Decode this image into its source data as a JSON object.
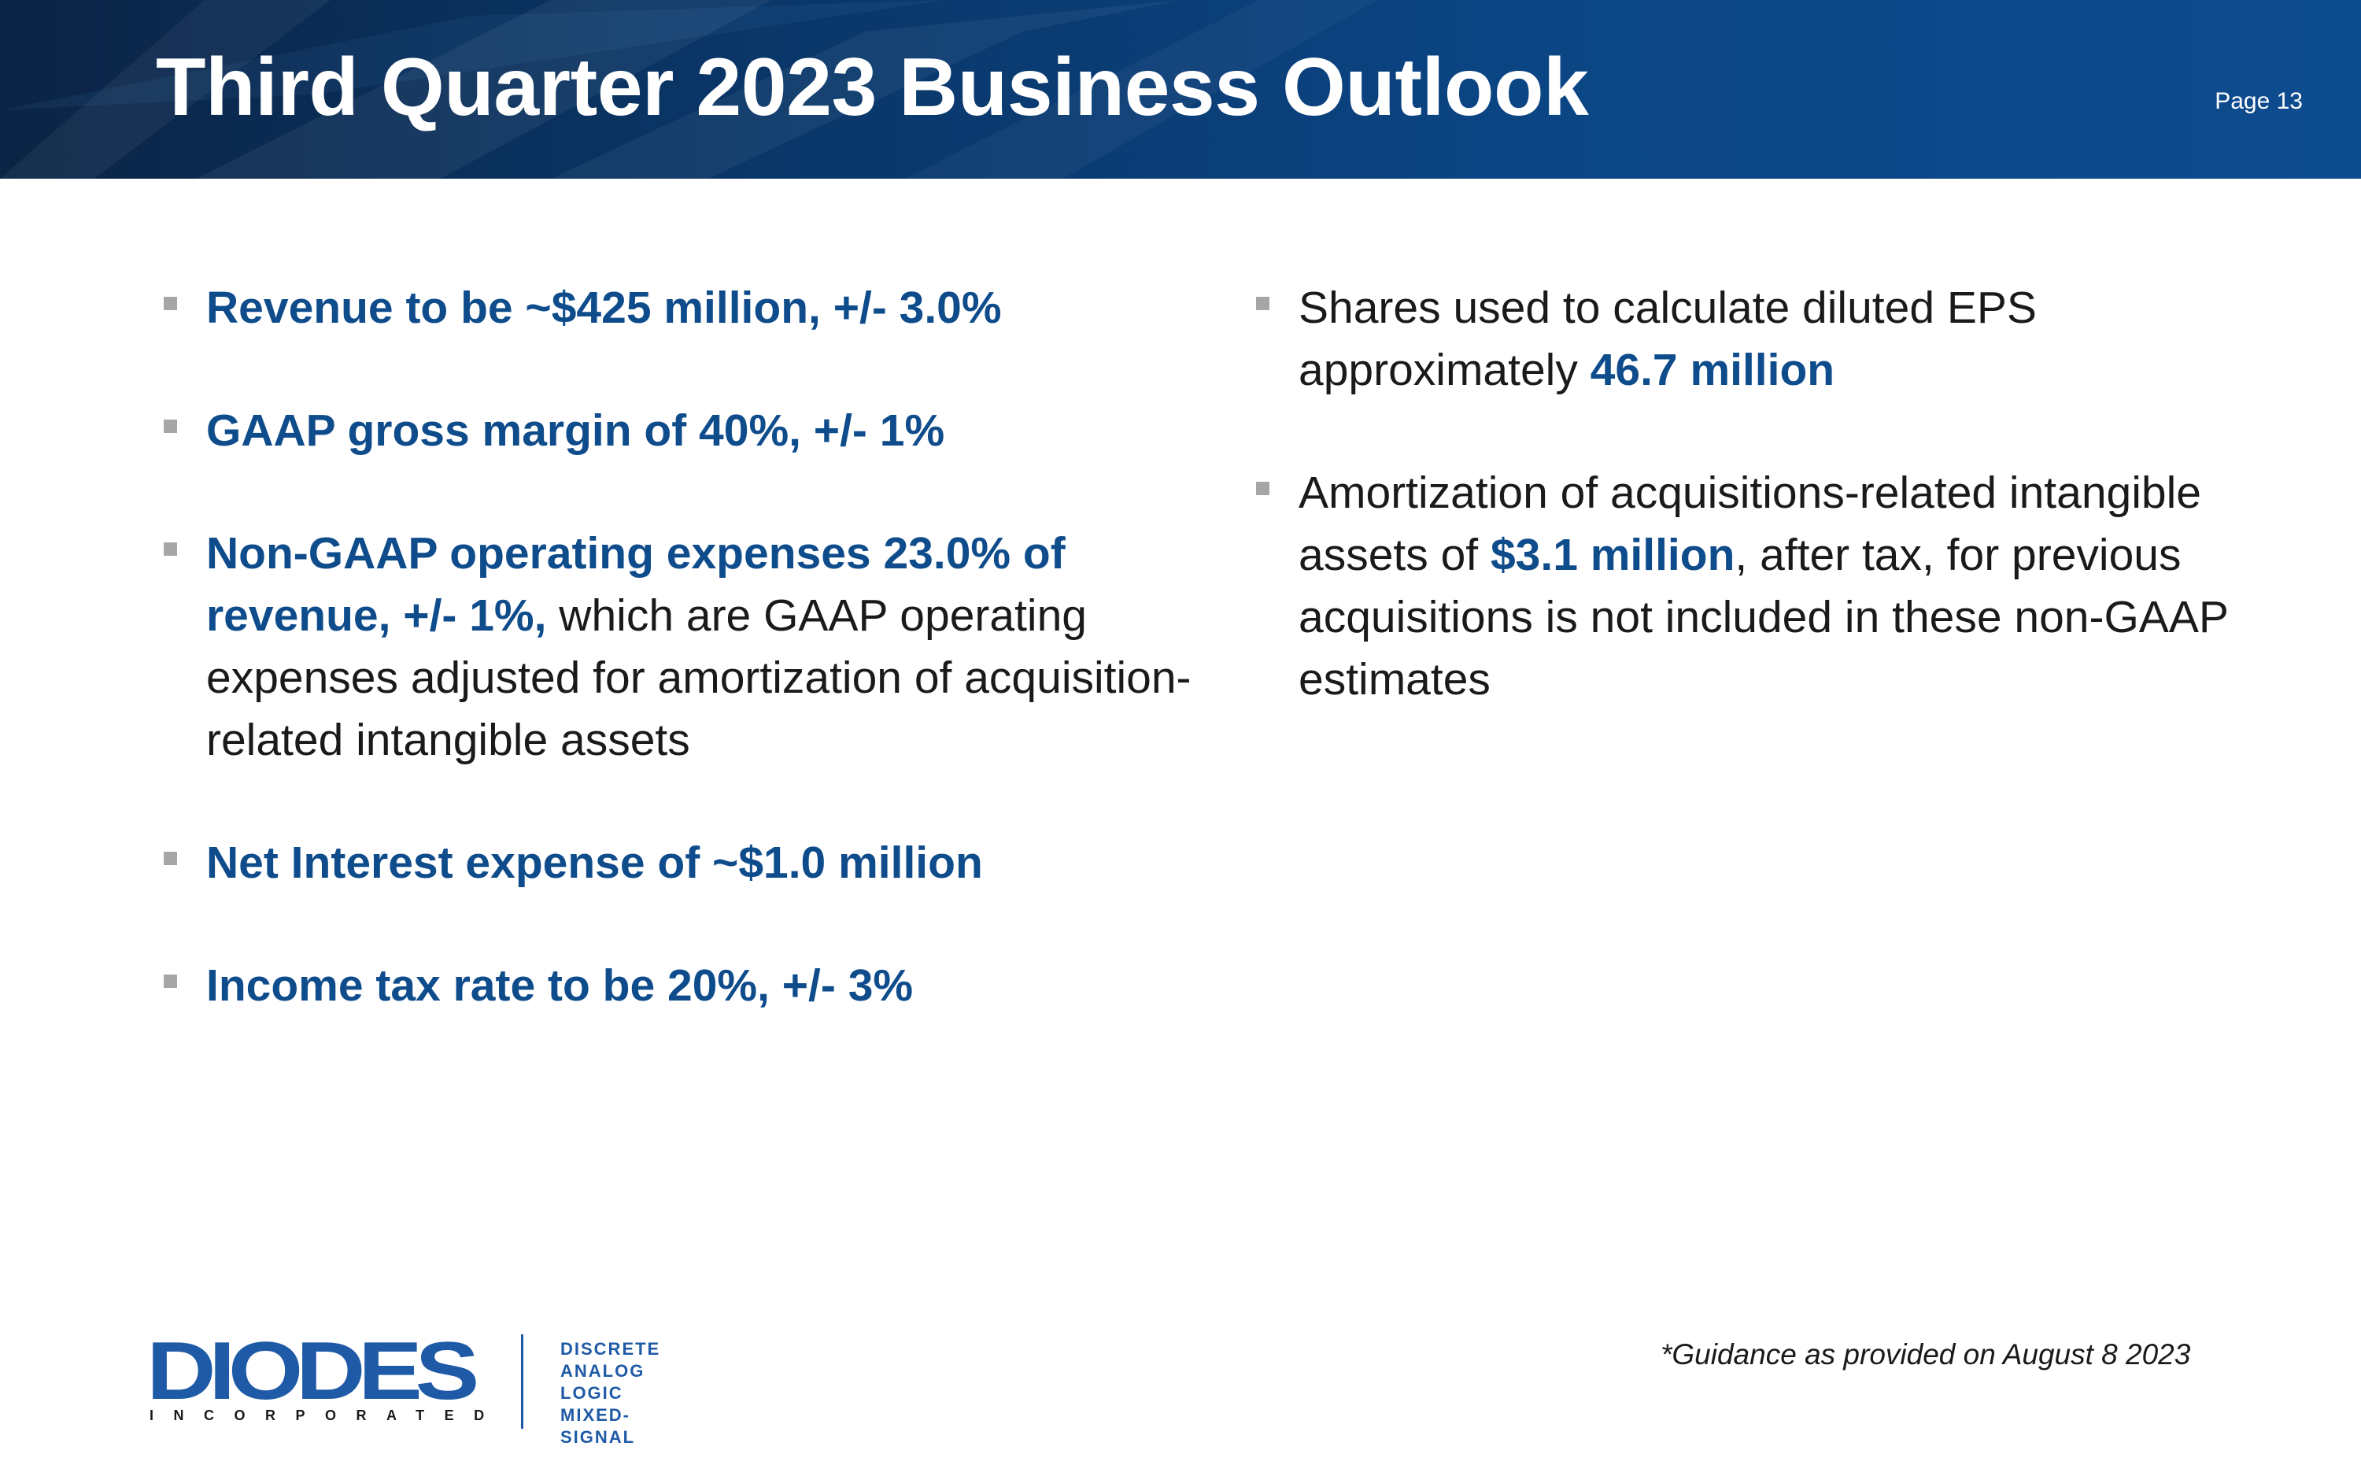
{
  "header": {
    "title": "Third Quarter 2023 Business Outlook",
    "page_label": "Page 13",
    "colors": {
      "band_dark": "#0b2445",
      "band_light": "#0d4c8f",
      "title_text": "#ffffff"
    }
  },
  "accent_color": "#0f4c8c",
  "bullet_color": "#a6a6a6",
  "left_column": [
    {
      "highlight": "Revenue to be ~$425 million, +/- 3.0%"
    },
    {
      "highlight": "GAAP gross margin of 40%, +/- 1%"
    },
    {
      "highlight": "Non-GAAP operating expenses 23.0% of revenue, +/- 1%,",
      "rest": " which are GAAP operating expenses adjusted for amortization of acquisition-related intangible assets"
    },
    {
      "highlight": "Net Interest expense of ~$1.0 million"
    },
    {
      "highlight": "Income tax rate to be 20%, +/- 3%"
    }
  ],
  "right_column": [
    {
      "pre": "Shares used to calculate diluted EPS approximately ",
      "highlight": "46.7 million"
    },
    {
      "pre": "Amortization of acquisitions-related intangible assets of ",
      "highlight": "$3.1 million",
      "post": ", after tax, for previous acquisitions is not included in these non-GAAP estimates"
    }
  ],
  "footnote": "*Guidance as provided on August 8 2023",
  "logo": {
    "name": "DIODES",
    "subtitle": "INCORPORATED",
    "tagline": [
      "DISCRETE",
      "ANALOG",
      "LOGIC",
      "MIXED-SIGNAL"
    ],
    "color": "#1f5aa6"
  }
}
